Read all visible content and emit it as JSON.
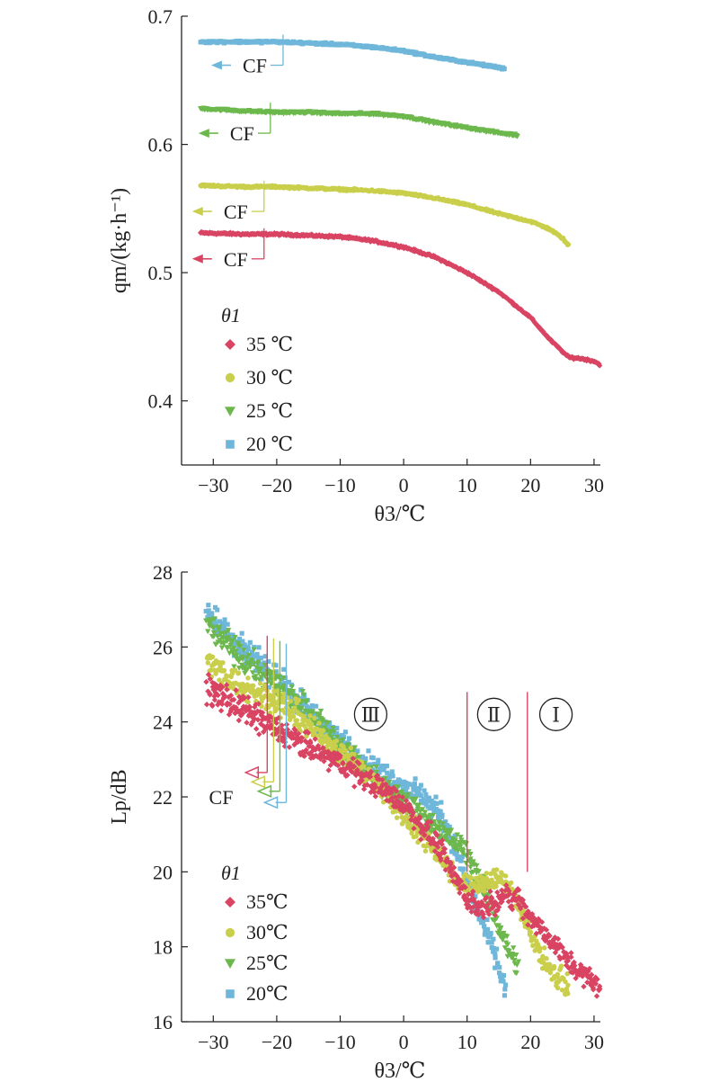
{
  "chart_data": [
    {
      "type": "scatter",
      "title": "",
      "xlabel": "θ3/℃",
      "ylabel": "qm/(kg·h⁻¹)",
      "xlim": [
        -35,
        31
      ],
      "ylim": [
        0.35,
        0.7
      ],
      "x_ticks": [
        -30,
        -20,
        -10,
        0,
        10,
        20,
        30
      ],
      "y_ticks": [
        0.4,
        0.5,
        0.6,
        0.7
      ],
      "x_tick_labels": [
        "−30",
        "−20",
        "−10",
        "0",
        "10",
        "20",
        "30"
      ],
      "y_tick_labels": [
        "0.4",
        "0.5",
        "0.6",
        "0.7"
      ],
      "legend_title": "θ1",
      "legend_position": "bottom-left",
      "series": [
        {
          "name": "35 ℃",
          "color": "#d94463",
          "marker": "diamond",
          "x": [
            -32,
            -25,
            -20,
            -15,
            -10,
            -5,
            0,
            5,
            10,
            15,
            20,
            23,
            26,
            28,
            30,
            31
          ],
          "y": [
            0.531,
            0.53,
            0.53,
            0.529,
            0.528,
            0.525,
            0.52,
            0.512,
            0.5,
            0.485,
            0.465,
            0.448,
            0.434,
            0.433,
            0.431,
            0.428
          ]
        },
        {
          "name": "30 ℃",
          "color": "#c9cf4b",
          "marker": "circle",
          "x": [
            -32,
            -25,
            -20,
            -15,
            -10,
            -5,
            0,
            5,
            10,
            15,
            20,
            23,
            25,
            26
          ],
          "y": [
            0.568,
            0.567,
            0.567,
            0.566,
            0.565,
            0.564,
            0.562,
            0.558,
            0.553,
            0.546,
            0.54,
            0.534,
            0.527,
            0.521
          ]
        },
        {
          "name": "25 ℃",
          "color": "#6cb84c",
          "marker": "triangle-down",
          "x": [
            -32,
            -25,
            -20,
            -15,
            -10,
            -5,
            0,
            5,
            10,
            15,
            18
          ],
          "y": [
            0.628,
            0.626,
            0.625,
            0.625,
            0.624,
            0.624,
            0.622,
            0.617,
            0.613,
            0.609,
            0.607
          ]
        },
        {
          "name": "20 ℃",
          "color": "#6fb7da",
          "marker": "square",
          "x": [
            -32,
            -25,
            -20,
            -15,
            -10,
            -5,
            0,
            5,
            10,
            15,
            16
          ],
          "y": [
            0.68,
            0.68,
            0.68,
            0.679,
            0.678,
            0.676,
            0.673,
            0.668,
            0.664,
            0.66,
            0.659
          ]
        }
      ],
      "annotations": [
        {
          "text": "CF",
          "series": "20 ℃",
          "x": -19,
          "y": 0.68
        },
        {
          "text": "CF",
          "series": "25 ℃",
          "x": -21,
          "y": 0.627
        },
        {
          "text": "CF",
          "series": "30 ℃",
          "x": -22,
          "y": 0.566
        },
        {
          "text": "CF",
          "series": "35 ℃",
          "x": -22,
          "y": 0.529
        }
      ]
    },
    {
      "type": "scatter",
      "title": "",
      "xlabel": "θ3/℃",
      "ylabel": "Lp/dB",
      "xlim": [
        -35,
        31
      ],
      "ylim": [
        16,
        28
      ],
      "x_ticks": [
        -30,
        -20,
        -10,
        0,
        10,
        20,
        30
      ],
      "y_ticks": [
        16,
        18,
        20,
        22,
        24,
        26,
        28
      ],
      "x_tick_labels": [
        "−30",
        "−20",
        "−10",
        "0",
        "10",
        "20",
        "30"
      ],
      "y_tick_labels": [
        "16",
        "18",
        "20",
        "22",
        "24",
        "26",
        "28"
      ],
      "legend_title": "θ1",
      "legend_position": "bottom-left",
      "series": [
        {
          "name": "35℃",
          "color": "#d94463",
          "marker": "diamond",
          "x": [
            -31,
            -25,
            -20,
            -15,
            -10,
            -5,
            0,
            5,
            8,
            10,
            12,
            15,
            18,
            20,
            22,
            25,
            28,
            31
          ],
          "y": [
            24.9,
            24.3,
            23.8,
            23.3,
            22.9,
            22.4,
            21.8,
            20.8,
            19.9,
            19.3,
            19.0,
            19.3,
            19.3,
            18.8,
            18.4,
            17.8,
            17.3,
            16.9
          ]
        },
        {
          "name": "30℃",
          "color": "#c9cf4b",
          "marker": "circle",
          "x": [
            -31,
            -25,
            -20,
            -15,
            -10,
            -5,
            0,
            5,
            8,
            10,
            12,
            15,
            17,
            20,
            23,
            26
          ],
          "y": [
            25.6,
            24.9,
            24.6,
            23.9,
            23.2,
            22.5,
            21.5,
            20.6,
            19.9,
            19.6,
            19.7,
            19.8,
            19.6,
            18.3,
            17.4,
            16.9
          ]
        },
        {
          "name": "25℃",
          "color": "#6cb84c",
          "marker": "triangle-down",
          "x": [
            -31,
            -25,
            -20,
            -15,
            -10,
            -5,
            0,
            5,
            8,
            10,
            12,
            14,
            16,
            18
          ],
          "y": [
            26.6,
            25.6,
            25.0,
            24.3,
            23.4,
            22.5,
            21.9,
            21.2,
            20.8,
            20.5,
            19.8,
            19.0,
            18.1,
            17.5
          ]
        },
        {
          "name": "20℃",
          "color": "#6fb7da",
          "marker": "square",
          "x": [
            -31,
            -25,
            -20,
            -15,
            -10,
            -5,
            0,
            3,
            6,
            8,
            10,
            12,
            14,
            16
          ],
          "y": [
            27.0,
            25.8,
            25.2,
            24.3,
            23.5,
            22.8,
            22.3,
            22.0,
            21.5,
            20.7,
            19.7,
            18.8,
            18.0,
            16.9
          ]
        }
      ],
      "regions": [
        {
          "label": "Ⅲ",
          "from": -13,
          "to": 10
        },
        {
          "label": "Ⅱ",
          "from": 10,
          "to": 19.5
        },
        {
          "label": "Ⅰ",
          "from": 19.5,
          "to": 30
        }
      ],
      "region_boundaries": [
        10,
        19.5
      ],
      "cf_label": "CF",
      "cf_markers": [
        {
          "series": "35℃",
          "x": -21.5
        },
        {
          "series": "30℃",
          "x": -20.5
        },
        {
          "series": "25℃",
          "x": -19.5
        },
        {
          "series": "20℃",
          "x": -18.5
        }
      ]
    }
  ]
}
